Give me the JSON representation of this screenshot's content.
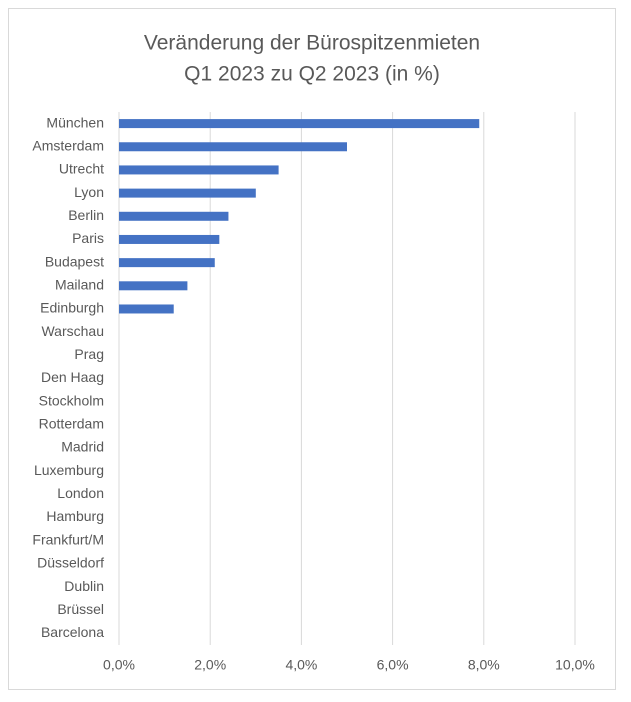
{
  "chart_data": {
    "type": "bar",
    "orientation": "horizontal",
    "title": [
      "Veränderung der Bürospitzenmieten",
      "Q1 2023 zu Q2 2023 (in %)"
    ],
    "categories": [
      "München",
      "Amsterdam",
      "Utrecht",
      "Lyon",
      "Berlin",
      "Paris",
      "Budapest",
      "Mailand",
      "Edinburgh",
      "Warschau",
      "Prag",
      "Den Haag",
      "Stockholm",
      "Rotterdam",
      "Madrid",
      "Luxemburg",
      "London",
      "Hamburg",
      "Frankfurt/M",
      "Düsseldorf",
      "Dublin",
      "Brüssel",
      "Barcelona"
    ],
    "values": [
      7.9,
      5.0,
      3.5,
      3.0,
      2.4,
      2.2,
      2.1,
      1.5,
      1.2,
      0,
      0,
      0,
      0,
      0,
      0,
      0,
      0,
      0,
      0,
      0,
      0,
      0,
      0
    ],
    "color": "#4472c4",
    "xlim": [
      0,
      10
    ],
    "xticks": [
      {
        "value": 0,
        "label": "0,0%"
      },
      {
        "value": 2,
        "label": "2,0%"
      },
      {
        "value": 4,
        "label": "4,0%"
      },
      {
        "value": 6,
        "label": "6,0%"
      },
      {
        "value": 8,
        "label": "8,0%"
      },
      {
        "value": 10,
        "label": "10,0%"
      }
    ],
    "grid": true
  }
}
